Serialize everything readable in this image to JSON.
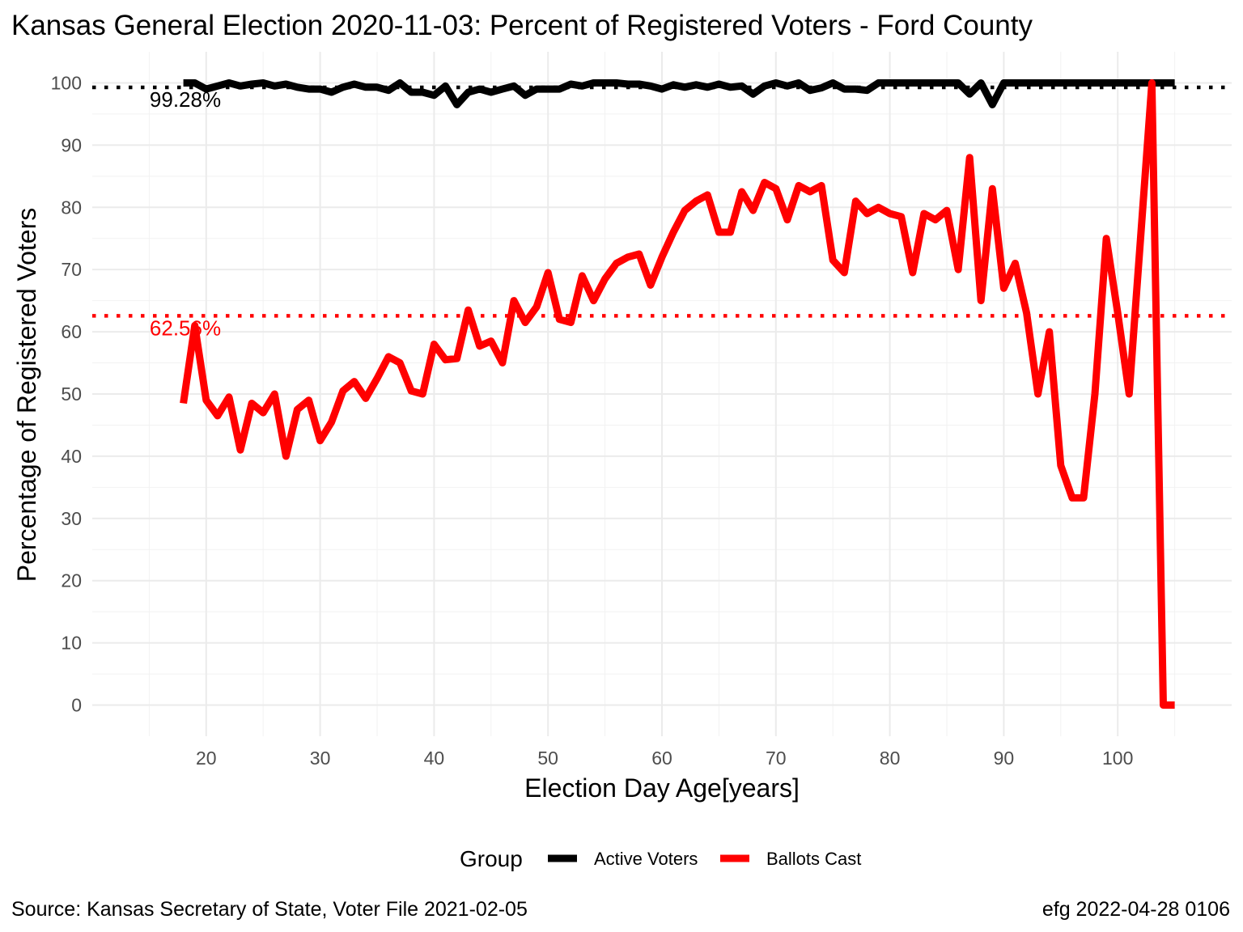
{
  "chart_data": {
    "type": "line",
    "title": "Kansas General Election 2020-11-03:  Percent of Registered Voters - Ford County",
    "xlabel": "Election Day Age[years]",
    "ylabel": "Percentage of Registered Voters",
    "xlim": [
      10,
      110
    ],
    "ylim": [
      -5,
      105
    ],
    "x_ticks": [
      20,
      30,
      40,
      50,
      60,
      70,
      80,
      90,
      100
    ],
    "y_ticks": [
      0,
      10,
      20,
      30,
      40,
      50,
      60,
      70,
      80,
      90,
      100
    ],
    "grid": true,
    "legend": {
      "title": "Group",
      "position": "bottom",
      "entries": [
        {
          "label": "Active Voters",
          "color": "#000000"
        },
        {
          "label": "Ballots Cast",
          "color": "#ff0000"
        }
      ]
    },
    "x": [
      18,
      19,
      20,
      21,
      22,
      23,
      24,
      25,
      26,
      27,
      28,
      29,
      30,
      31,
      32,
      33,
      34,
      35,
      36,
      37,
      38,
      39,
      40,
      41,
      42,
      43,
      44,
      45,
      46,
      47,
      48,
      49,
      50,
      51,
      52,
      53,
      54,
      55,
      56,
      57,
      58,
      59,
      60,
      61,
      62,
      63,
      64,
      65,
      66,
      67,
      68,
      69,
      70,
      71,
      72,
      73,
      74,
      75,
      76,
      77,
      78,
      79,
      80,
      81,
      82,
      83,
      84,
      85,
      86,
      87,
      88,
      89,
      90,
      91,
      92,
      93,
      94,
      95,
      96,
      97,
      98,
      99,
      100,
      101,
      102,
      103,
      104,
      105
    ],
    "series": [
      {
        "name": "Active Voters",
        "color": "#000000",
        "values": [
          100,
          100,
          99,
          99.5,
          100,
          99.5,
          99.8,
          100,
          99.5,
          99.8,
          99.3,
          99,
          99,
          98.5,
          99.3,
          99.8,
          99.3,
          99.3,
          98.8,
          100,
          98.5,
          98.5,
          98,
          99.5,
          96.5,
          98.5,
          99,
          98.5,
          99,
          99.5,
          98,
          99,
          99,
          99,
          99.8,
          99.5,
          100,
          100,
          100,
          99.8,
          99.8,
          99.5,
          99,
          99.7,
          99.3,
          99.7,
          99.3,
          99.8,
          99.3,
          99.5,
          98.2,
          99.5,
          100,
          99.5,
          100,
          98.8,
          99.2,
          100,
          99,
          99,
          98.8,
          100,
          100,
          100,
          100,
          100,
          100,
          100,
          100,
          98.2,
          100,
          96.5,
          100,
          100,
          100,
          100,
          100,
          100,
          100,
          100,
          100,
          100,
          100,
          100,
          100,
          100,
          100,
          100
        ]
      },
      {
        "name": "Ballots Cast",
        "color": "#ff0000",
        "values": [
          48.5,
          61,
          49,
          46.5,
          49.5,
          41,
          48.5,
          47,
          50,
          40,
          47.5,
          49,
          42.5,
          45.5,
          50.5,
          52,
          49.3,
          52.5,
          56,
          55,
          50.5,
          50,
          58,
          55.5,
          55.7,
          63.5,
          57.7,
          58.5,
          55,
          65,
          61.5,
          64,
          69.5,
          62,
          61.5,
          69,
          65,
          68.5,
          71,
          72,
          72.5,
          67.5,
          72,
          76,
          79.5,
          81,
          82,
          76,
          76,
          82.5,
          79.5,
          84,
          83,
          78,
          83.5,
          82.5,
          83.5,
          71.5,
          69.5,
          81,
          79,
          80,
          79,
          78.5,
          69.5,
          79,
          78,
          79.5,
          70,
          88,
          65,
          83,
          67,
          71,
          63,
          50,
          60,
          38.5,
          33.3,
          33.3,
          50,
          75,
          63,
          50,
          75,
          100,
          0,
          0
        ]
      }
    ],
    "reference_lines": [
      {
        "label": "99.28%",
        "value": 99.28,
        "color": "#000000"
      },
      {
        "label": "62.56%",
        "value": 62.56,
        "color": "#ff0000"
      }
    ]
  },
  "captions": {
    "source": "Source:  Kansas Secretary of State, Voter File  2021-02-05",
    "credit": "efg 2022-04-28 0106"
  }
}
